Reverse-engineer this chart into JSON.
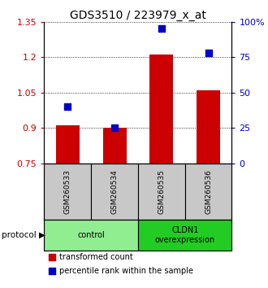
{
  "title": "GDS3510 / 223979_x_at",
  "samples": [
    "GSM260533",
    "GSM260534",
    "GSM260535",
    "GSM260536"
  ],
  "red_values": [
    0.91,
    0.9,
    1.21,
    1.06
  ],
  "blue_values_pct": [
    40,
    25,
    95,
    78
  ],
  "ylim_left": [
    0.75,
    1.35
  ],
  "ylim_right": [
    0,
    100
  ],
  "yticks_left": [
    0.75,
    0.9,
    1.05,
    1.2,
    1.35
  ],
  "yticks_right": [
    0,
    25,
    50,
    75,
    100
  ],
  "ytick_labels_left": [
    "0.75",
    "0.9",
    "1.05",
    "1.2",
    "1.35"
  ],
  "ytick_labels_right": [
    "0",
    "25",
    "50",
    "75",
    "100%"
  ],
  "groups": [
    {
      "label": "control",
      "samples": [
        0,
        1
      ],
      "color": "#90EE90"
    },
    {
      "label": "CLDN1\noverexpression",
      "samples": [
        2,
        3
      ],
      "color": "#22CC22"
    }
  ],
  "bar_color": "#CC0000",
  "dot_color": "#0000CC",
  "sample_box_color": "#C8C8C8",
  "protocol_label": "protocol",
  "legend_red": "transformed count",
  "legend_blue": "percentile rank within the sample",
  "bar_bottom": 0.75,
  "bar_width": 0.5,
  "dot_size": 35,
  "title_fontsize": 10,
  "axis_fontsize": 8
}
